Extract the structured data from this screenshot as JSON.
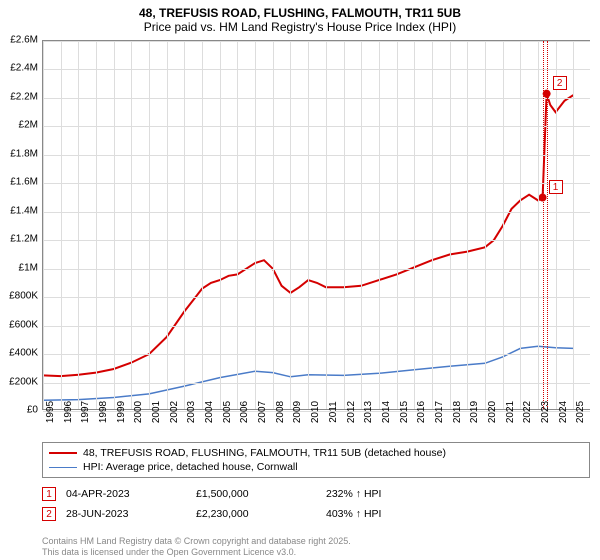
{
  "title": {
    "line1": "48, TREFUSIS ROAD, FLUSHING, FALMOUTH, TR11 5UB",
    "line2": "Price paid vs. HM Land Registry's House Price Index (HPI)",
    "fontsize": 12,
    "color": "#000000"
  },
  "chart": {
    "type": "line",
    "background_color": "#ffffff",
    "grid_color": "#dddddd",
    "border_color": "#888888",
    "xlim": [
      1995,
      2026
    ],
    "ylim": [
      0,
      2600000
    ],
    "xtick_step": 1,
    "ytick_step": 200000,
    "x_labels": [
      "1995",
      "1996",
      "1997",
      "1998",
      "1999",
      "2000",
      "2001",
      "2002",
      "2003",
      "2004",
      "2005",
      "2006",
      "2007",
      "2008",
      "2009",
      "2010",
      "2011",
      "2012",
      "2013",
      "2014",
      "2015",
      "2016",
      "2017",
      "2018",
      "2019",
      "2020",
      "2021",
      "2022",
      "2023",
      "2024",
      "2025"
    ],
    "y_labels": [
      "£0",
      "£200K",
      "£400K",
      "£600K",
      "£800K",
      "£1M",
      "£1.2M",
      "£1.4M",
      "£1.6M",
      "£1.8M",
      "£2M",
      "£2.2M",
      "£2.4M",
      "£2.6M"
    ],
    "tick_fontsize": 10
  },
  "series": [
    {
      "name": "price_paid",
      "label": "48, TREFUSIS ROAD, FLUSHING, FALMOUTH, TR11 5UB (detached house)",
      "color": "#d40000",
      "line_width": 2,
      "data": [
        [
          1995.0,
          250000
        ],
        [
          1996.0,
          245000
        ],
        [
          1997.0,
          255000
        ],
        [
          1998.0,
          270000
        ],
        [
          1999.0,
          295000
        ],
        [
          2000.0,
          340000
        ],
        [
          2001.0,
          400000
        ],
        [
          2002.0,
          520000
        ],
        [
          2003.0,
          700000
        ],
        [
          2003.5,
          780000
        ],
        [
          2004.0,
          860000
        ],
        [
          2004.5,
          900000
        ],
        [
          2005.0,
          920000
        ],
        [
          2005.5,
          950000
        ],
        [
          2006.0,
          960000
        ],
        [
          2006.5,
          1000000
        ],
        [
          2007.0,
          1040000
        ],
        [
          2007.5,
          1060000
        ],
        [
          2008.0,
          1000000
        ],
        [
          2008.5,
          880000
        ],
        [
          2009.0,
          830000
        ],
        [
          2009.5,
          870000
        ],
        [
          2010.0,
          920000
        ],
        [
          2010.5,
          900000
        ],
        [
          2011.0,
          870000
        ],
        [
          2012.0,
          870000
        ],
        [
          2013.0,
          880000
        ],
        [
          2014.0,
          920000
        ],
        [
          2015.0,
          960000
        ],
        [
          2016.0,
          1010000
        ],
        [
          2017.0,
          1060000
        ],
        [
          2018.0,
          1100000
        ],
        [
          2019.0,
          1120000
        ],
        [
          2020.0,
          1150000
        ],
        [
          2020.5,
          1200000
        ],
        [
          2021.0,
          1300000
        ],
        [
          2021.5,
          1420000
        ],
        [
          2022.0,
          1480000
        ],
        [
          2022.5,
          1520000
        ],
        [
          2023.0,
          1480000
        ],
        [
          2023.26,
          1500000
        ],
        [
          2023.49,
          2230000
        ],
        [
          2023.7,
          2150000
        ],
        [
          2024.0,
          2100000
        ],
        [
          2024.5,
          2180000
        ],
        [
          2025.0,
          2220000
        ]
      ]
    },
    {
      "name": "hpi",
      "label": "HPI: Average price, detached house, Cornwall",
      "color": "#4a7bc8",
      "line_width": 1.5,
      "data": [
        [
          1995.0,
          75000
        ],
        [
          1997.0,
          80000
        ],
        [
          1999.0,
          95000
        ],
        [
          2001.0,
          120000
        ],
        [
          2003.0,
          175000
        ],
        [
          2005.0,
          235000
        ],
        [
          2007.0,
          280000
        ],
        [
          2008.0,
          270000
        ],
        [
          2009.0,
          240000
        ],
        [
          2010.0,
          255000
        ],
        [
          2012.0,
          250000
        ],
        [
          2014.0,
          265000
        ],
        [
          2016.0,
          290000
        ],
        [
          2018.0,
          315000
        ],
        [
          2020.0,
          335000
        ],
        [
          2021.0,
          380000
        ],
        [
          2022.0,
          440000
        ],
        [
          2023.0,
          455000
        ],
        [
          2024.0,
          445000
        ],
        [
          2025.0,
          440000
        ]
      ]
    }
  ],
  "markers": [
    {
      "num": "1",
      "x": 2023.26,
      "y": 1500000,
      "color": "#d40000",
      "date": "04-APR-2023",
      "price": "£1,500,000",
      "ratio": "232% ↑ HPI"
    },
    {
      "num": "2",
      "x": 2023.49,
      "y": 2230000,
      "color": "#d40000",
      "date": "28-JUN-2023",
      "price": "£2,230,000",
      "ratio": "403% ↑ HPI"
    }
  ],
  "legend": {
    "border_color": "#888888",
    "fontsize": 10.5
  },
  "footer": {
    "line1": "Contains HM Land Registry data © Crown copyright and database right 2025.",
    "line2": "This data is licensed under the Open Government Licence v3.0.",
    "color": "#888888",
    "fontsize": 9
  }
}
